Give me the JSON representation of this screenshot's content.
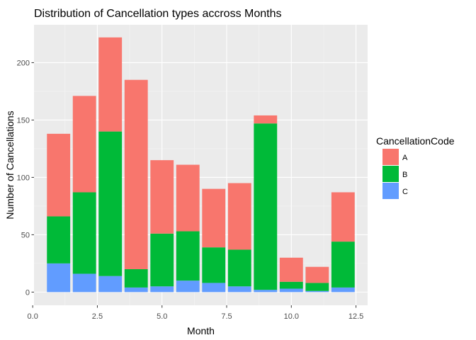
{
  "chart_data": {
    "type": "bar",
    "stacked": true,
    "title": "Distribution of Cancellation types accross Months",
    "xlabel": "Month",
    "ylabel": "Number of Cancellations",
    "xlim": [
      0,
      12.6
    ],
    "ylim": [
      0,
      230
    ],
    "xticks": [
      0.0,
      2.5,
      5.0,
      7.5,
      10.0,
      12.5
    ],
    "xtick_labels": [
      "0.0",
      "2.5",
      "5.0",
      "7.5",
      "10.0",
      "12.5"
    ],
    "yticks": [
      0,
      50,
      100,
      150,
      200
    ],
    "ytick_labels": [
      "0",
      "50",
      "100",
      "150",
      "200"
    ],
    "grid": true,
    "legend": {
      "title": "CancellationCode",
      "position": "right",
      "entries": [
        "A",
        "B",
        "C"
      ]
    },
    "x": [
      1,
      2,
      3,
      4,
      5,
      6,
      7,
      8,
      9,
      10,
      11,
      12
    ],
    "series": [
      {
        "name": "A",
        "color": "#F8766D",
        "values": [
          72,
          84,
          82,
          165,
          64,
          58,
          51,
          58,
          7,
          21,
          14,
          43
        ]
      },
      {
        "name": "B",
        "color": "#00BA38",
        "values": [
          41,
          71,
          126,
          16,
          46,
          43,
          31,
          32,
          145,
          6,
          7,
          40
        ]
      },
      {
        "name": "C",
        "color": "#619CFF",
        "values": [
          25,
          16,
          14,
          4,
          5,
          10,
          8,
          5,
          2,
          3,
          1,
          4
        ]
      }
    ]
  }
}
